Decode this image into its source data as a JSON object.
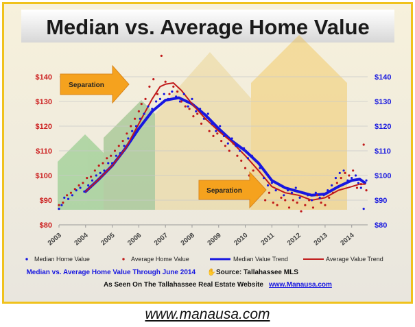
{
  "page": {
    "title": "Median vs. Average Home Value",
    "website_link": "www.manausa.com"
  },
  "colors": {
    "frame": "#f0c21c",
    "left_axis": "#cc1f1f",
    "right_axis": "#1a1adf",
    "median": "#1717e0",
    "average": "#c01a1a",
    "callout_fill": "#f5a21e"
  },
  "annotations": [
    {
      "name": "separation-callout-1",
      "text": "Separation"
    },
    {
      "name": "separation-callout-2",
      "text": "Separation"
    }
  ],
  "captions": {
    "line1": "Median vs. Average Home Value Through June 2014",
    "source": "Source: Tallahassee MLS",
    "line2": "As Seen On The Tallahassee Real Estate Website",
    "site": "www.Manausa.com"
  },
  "chart_data": {
    "type": "line",
    "title": "Median vs. Average Home Value",
    "x_ticks": [
      "2003",
      "2004",
      "2005",
      "2006",
      "2007",
      "2008",
      "2009",
      "2010",
      "2011",
      "2012",
      "2013",
      "2014"
    ],
    "xlim": [
      2003,
      2014.6
    ],
    "y_left_ticks": [
      "$80",
      "$90",
      "$100",
      "$110",
      "$120",
      "$130",
      "$140"
    ],
    "y_right_ticks": [
      "$80",
      "$90",
      "$100",
      "$110",
      "$120",
      "$130",
      "$140"
    ],
    "ylim": [
      80,
      145
    ],
    "grid": true,
    "legend_position": "bottom",
    "legend": [
      "Median Home Value",
      "Average Home Value",
      "Median Value Trend",
      "Average Value Trend"
    ],
    "series": [
      {
        "name": "Median Value Trend",
        "style": "thick-line",
        "points": [
          [
            2004.0,
            93.5
          ],
          [
            2004.5,
            98.5
          ],
          [
            2005.0,
            104
          ],
          [
            2005.5,
            111
          ],
          [
            2006.0,
            119
          ],
          [
            2006.5,
            126
          ],
          [
            2007.0,
            130.5
          ],
          [
            2007.5,
            131.5
          ],
          [
            2008.0,
            129
          ],
          [
            2008.5,
            124.5
          ],
          [
            2009.0,
            119
          ],
          [
            2009.5,
            114
          ],
          [
            2010.0,
            110
          ],
          [
            2010.5,
            105
          ],
          [
            2011.0,
            98
          ],
          [
            2011.5,
            95
          ],
          [
            2012.0,
            93.5
          ],
          [
            2012.5,
            92
          ],
          [
            2013.0,
            92.5
          ],
          [
            2013.5,
            95.5
          ],
          [
            2014.0,
            98
          ],
          [
            2014.3,
            98.5
          ],
          [
            2014.5,
            97
          ]
        ]
      },
      {
        "name": "Average Value Trend",
        "style": "line",
        "points": [
          [
            2004.0,
            93.5
          ],
          [
            2004.5,
            98.5
          ],
          [
            2005.0,
            104
          ],
          [
            2005.5,
            111
          ],
          [
            2006.0,
            121
          ],
          [
            2006.5,
            131
          ],
          [
            2006.8,
            136
          ],
          [
            2007.0,
            137
          ],
          [
            2007.3,
            137.5
          ],
          [
            2007.6,
            134.5
          ],
          [
            2008.0,
            129
          ],
          [
            2008.5,
            123
          ],
          [
            2009.0,
            118
          ],
          [
            2009.5,
            113.5
          ],
          [
            2010.0,
            108
          ],
          [
            2010.5,
            102
          ],
          [
            2011.0,
            95.5
          ],
          [
            2011.5,
            93
          ],
          [
            2012.0,
            92
          ],
          [
            2012.5,
            90
          ],
          [
            2013.0,
            91
          ],
          [
            2013.5,
            94
          ],
          [
            2014.0,
            95.5
          ],
          [
            2014.3,
            96.5
          ],
          [
            2014.5,
            96.5
          ]
        ]
      },
      {
        "name": "Median Home Value",
        "style": "dots",
        "points": [
          [
            2003.0,
            86.5
          ],
          [
            2003.1,
            88
          ],
          [
            2003.2,
            91
          ],
          [
            2003.35,
            90.5
          ],
          [
            2003.5,
            92
          ],
          [
            2003.65,
            94
          ],
          [
            2003.8,
            95
          ],
          [
            2003.95,
            93.5
          ],
          [
            2004.1,
            96
          ],
          [
            2004.25,
            98
          ],
          [
            2004.4,
            100
          ],
          [
            2004.55,
            101
          ],
          [
            2004.7,
            102
          ],
          [
            2004.85,
            105
          ],
          [
            2005.0,
            105
          ],
          [
            2005.15,
            108
          ],
          [
            2005.3,
            109
          ],
          [
            2005.45,
            112
          ],
          [
            2005.6,
            115
          ],
          [
            2005.75,
            118
          ],
          [
            2005.9,
            120
          ],
          [
            2006.05,
            123
          ],
          [
            2006.2,
            125
          ],
          [
            2006.35,
            128
          ],
          [
            2006.5,
            127
          ],
          [
            2006.65,
            130
          ],
          [
            2006.8,
            131
          ],
          [
            2006.95,
            133
          ],
          [
            2007.1,
            131
          ],
          [
            2007.25,
            134
          ],
          [
            2007.4,
            132
          ],
          [
            2007.55,
            130
          ],
          [
            2007.7,
            133
          ],
          [
            2007.85,
            128
          ],
          [
            2008.0,
            131
          ],
          [
            2008.15,
            126
          ],
          [
            2008.3,
            127
          ],
          [
            2008.45,
            123
          ],
          [
            2008.6,
            125
          ],
          [
            2008.75,
            121
          ],
          [
            2008.9,
            118
          ],
          [
            2009.05,
            120
          ],
          [
            2009.2,
            116
          ],
          [
            2009.35,
            113
          ],
          [
            2009.5,
            115
          ],
          [
            2009.65,
            112
          ],
          [
            2009.8,
            110
          ],
          [
            2009.95,
            111
          ],
          [
            2010.1,
            107
          ],
          [
            2010.25,
            108
          ],
          [
            2010.4,
            106
          ],
          [
            2010.55,
            103
          ],
          [
            2010.7,
            99
          ],
          [
            2010.85,
            96
          ],
          [
            2011.0,
            97
          ],
          [
            2011.15,
            94
          ],
          [
            2011.3,
            96
          ],
          [
            2011.45,
            92
          ],
          [
            2011.6,
            94
          ],
          [
            2011.75,
            93
          ],
          [
            2011.9,
            95
          ],
          [
            2012.05,
            91
          ],
          [
            2012.2,
            93
          ],
          [
            2012.35,
            92
          ],
          [
            2012.5,
            90
          ],
          [
            2012.65,
            93
          ],
          [
            2012.8,
            91
          ],
          [
            2012.95,
            92
          ],
          [
            2013.1,
            94
          ],
          [
            2013.25,
            96
          ],
          [
            2013.4,
            99
          ],
          [
            2013.55,
            101
          ],
          [
            2013.7,
            102
          ],
          [
            2013.85,
            98
          ],
          [
            2014.0,
            99
          ],
          [
            2014.15,
            100
          ],
          [
            2014.25,
            97
          ],
          [
            2014.35,
            95
          ],
          [
            2014.45,
            86.5
          ],
          [
            2014.55,
            98
          ]
        ]
      },
      {
        "name": "Average Home Value",
        "style": "dots",
        "points": [
          [
            2003.0,
            88
          ],
          [
            2003.15,
            89
          ],
          [
            2003.3,
            92
          ],
          [
            2003.45,
            93
          ],
          [
            2003.6,
            94.5
          ],
          [
            2003.75,
            96
          ],
          [
            2003.9,
            97
          ],
          [
            2004.05,
            99
          ],
          [
            2004.2,
            99.5
          ],
          [
            2004.35,
            102
          ],
          [
            2004.5,
            104
          ],
          [
            2004.65,
            105
          ],
          [
            2004.8,
            107
          ],
          [
            2004.95,
            108
          ],
          [
            2005.1,
            110
          ],
          [
            2005.25,
            112
          ],
          [
            2005.4,
            114
          ],
          [
            2005.55,
            117
          ],
          [
            2005.7,
            120
          ],
          [
            2005.85,
            123
          ],
          [
            2006.0,
            126
          ],
          [
            2006.1,
            129
          ],
          [
            2006.25,
            131
          ],
          [
            2006.4,
            136
          ],
          [
            2006.55,
            139
          ],
          [
            2006.7,
            133
          ],
          [
            2006.85,
            148.5
          ],
          [
            2007.0,
            138
          ],
          [
            2007.15,
            133
          ],
          [
            2007.3,
            136
          ],
          [
            2007.45,
            134
          ],
          [
            2007.6,
            130
          ],
          [
            2007.75,
            128
          ],
          [
            2007.9,
            127
          ],
          [
            2008.05,
            124
          ],
          [
            2008.2,
            125
          ],
          [
            2008.35,
            121
          ],
          [
            2008.5,
            123
          ],
          [
            2008.65,
            118
          ],
          [
            2008.8,
            116
          ],
          [
            2008.95,
            117
          ],
          [
            2009.1,
            114
          ],
          [
            2009.25,
            112
          ],
          [
            2009.4,
            110
          ],
          [
            2009.55,
            113
          ],
          [
            2009.7,
            108
          ],
          [
            2009.85,
            106
          ],
          [
            2010.0,
            103
          ],
          [
            2010.15,
            100
          ],
          [
            2010.3,
            102
          ],
          [
            2010.45,
            97
          ],
          [
            2010.6,
            95
          ],
          [
            2010.75,
            90
          ],
          [
            2010.9,
            93
          ],
          [
            2011.05,
            89
          ],
          [
            2011.2,
            88
          ],
          [
            2011.35,
            91
          ],
          [
            2011.5,
            90
          ],
          [
            2011.65,
            87
          ],
          [
            2011.8,
            90
          ],
          [
            2011.95,
            89
          ],
          [
            2012.1,
            85.5
          ],
          [
            2012.25,
            88
          ],
          [
            2012.4,
            90
          ],
          [
            2012.55,
            87
          ],
          [
            2012.7,
            92
          ],
          [
            2012.85,
            89
          ],
          [
            2013.0,
            88
          ],
          [
            2013.15,
            91
          ],
          [
            2013.3,
            93
          ],
          [
            2013.45,
            97
          ],
          [
            2013.6,
            99
          ],
          [
            2013.75,
            101
          ],
          [
            2013.9,
            100
          ],
          [
            2014.05,
            102
          ],
          [
            2014.2,
            95
          ],
          [
            2014.35,
            96.5
          ],
          [
            2014.45,
            112.5
          ],
          [
            2014.55,
            94
          ]
        ]
      }
    ]
  }
}
